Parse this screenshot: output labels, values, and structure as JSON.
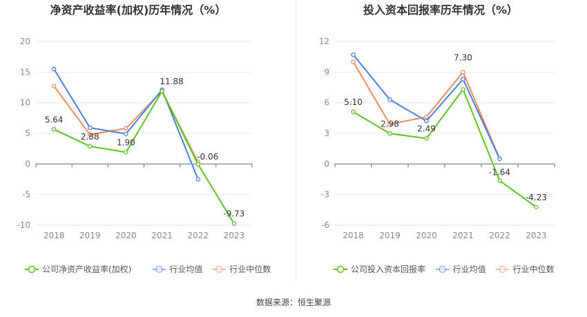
{
  "footer": "数据来源：恒生聚源",
  "chart_data": [
    {
      "type": "line",
      "title": "净资产收益率(加权)历年情况（%）",
      "categories": [
        "2018",
        "2019",
        "2020",
        "2021",
        "2022",
        "2023"
      ],
      "ylim": [
        -10,
        20
      ],
      "yticks": [
        -10,
        -5,
        0,
        5,
        10,
        15,
        20
      ],
      "ytick_labels": [
        "-10",
        "-5",
        "0",
        "5",
        "10",
        "15",
        "20"
      ],
      "series": [
        {
          "name": "公司净资产收益率(加权)",
          "color": "#5cc425",
          "values": [
            5.64,
            2.88,
            1.9,
            11.88,
            -0.06,
            -9.73
          ],
          "labels": [
            "5.64",
            "2.88",
            "1.90",
            "11.88",
            "-0.06",
            "-9.73"
          ]
        },
        {
          "name": "行业均值",
          "color": "#4a7fe0",
          "values": [
            15.5,
            5.9,
            4.9,
            12.1,
            -2.5,
            null
          ]
        },
        {
          "name": "行业中位数",
          "color": "#f08a5d",
          "values": [
            12.7,
            4.8,
            5.8,
            11.9,
            0.3,
            null
          ]
        }
      ]
    },
    {
      "type": "line",
      "title": "投入资本回报率历年情况（%）",
      "categories": [
        "2018",
        "2019",
        "2020",
        "2021",
        "2022",
        "2023"
      ],
      "ylim": [
        -6,
        12
      ],
      "yticks": [
        -6,
        -3,
        0,
        3,
        6,
        9,
        12
      ],
      "ytick_labels": [
        "-6",
        "-3",
        "0",
        "3",
        "6",
        "9",
        "12"
      ],
      "series": [
        {
          "name": "公司投入资本回报率",
          "color": "#5cc425",
          "values": [
            5.1,
            2.98,
            2.49,
            7.3,
            -1.64,
            -4.23
          ],
          "labels": [
            "5.10",
            "2.98",
            "2.49",
            "7.30",
            "-1.64",
            "-4.23"
          ]
        },
        {
          "name": "行业均值",
          "color": "#4a7fe0",
          "values": [
            10.7,
            6.3,
            4.2,
            8.3,
            0.5,
            null
          ]
        },
        {
          "name": "行业中位数",
          "color": "#f08a5d",
          "values": [
            10.0,
            3.9,
            4.6,
            9.0,
            0.5,
            null
          ]
        }
      ]
    }
  ]
}
